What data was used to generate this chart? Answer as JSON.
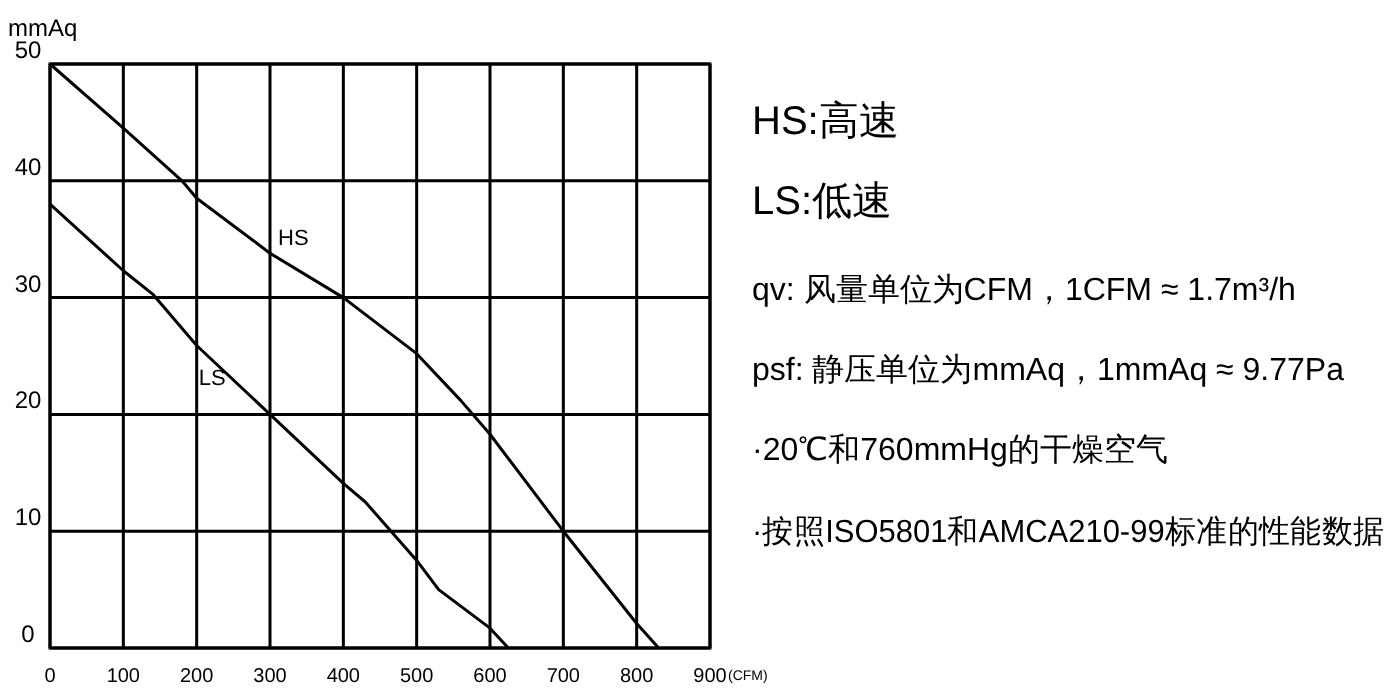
{
  "chart_data": {
    "type": "line",
    "ylabel": "mmAq",
    "xlabel": "(CFM)",
    "xlim": [
      0,
      900
    ],
    "ylim": [
      0,
      50
    ],
    "xticks": [
      0,
      100,
      200,
      300,
      400,
      500,
      600,
      700,
      800,
      900
    ],
    "yticks": [
      0,
      10,
      20,
      30,
      40,
      50
    ],
    "grid": true,
    "marker": "none",
    "line_style": "solid",
    "series": [
      {
        "name": "HS",
        "color": "#000000",
        "x": [
          0,
          100,
          180,
          200,
          300,
          400,
          500,
          560,
          600,
          700,
          800,
          830
        ],
        "values": [
          50,
          44.5,
          40,
          38.5,
          33.8,
          30,
          25.2,
          21.2,
          18.3,
          10,
          2.1,
          0
        ]
      },
      {
        "name": "LS",
        "color": "#000000",
        "x": [
          0,
          100,
          140,
          200,
          300,
          400,
          430,
          500,
          530,
          600,
          625
        ],
        "values": [
          38,
          32.3,
          30.3,
          25.9,
          20,
          14.1,
          12.5,
          7.5,
          5,
          1.7,
          0
        ]
      }
    ],
    "annotations": [
      "HS:高速",
      "LS:低速",
      "qv: 风量单位为CFM，1CFM ≈ 1.7m³/h",
      "psf: 静压单位为mmAq，1mmAq ≈ 9.77Pa",
      "·20℃和760mmHg的干燥空气",
      "·按照ISO5801和AMCA210-99标准的性能数据"
    ]
  }
}
